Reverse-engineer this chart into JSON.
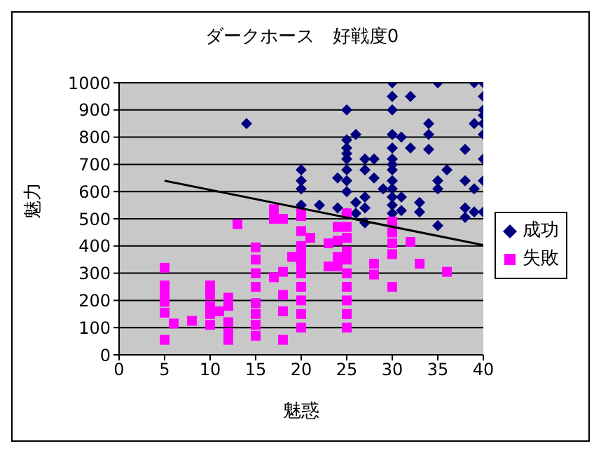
{
  "chart_data": {
    "type": "scatter",
    "title": "ダークホース　好戦度0",
    "xlabel": "魅惑",
    "ylabel": "魅力",
    "xlim": [
      0,
      40
    ],
    "xticks": [
      0,
      5,
      10,
      15,
      20,
      25,
      30,
      35,
      40
    ],
    "ylim": [
      0,
      1000
    ],
    "yticks": [
      0,
      100,
      200,
      300,
      400,
      500,
      600,
      700,
      800,
      900,
      1000
    ],
    "grid": "y",
    "legend": "right",
    "series": [
      {
        "name": "成功",
        "color": "#000080",
        "marker": "diamond",
        "x": [
          14,
          20,
          20,
          20,
          20,
          22,
          24,
          24,
          25,
          25,
          25,
          25,
          25,
          25,
          25,
          25,
          26,
          26,
          27,
          27,
          27,
          27,
          27,
          28,
          28,
          29,
          30,
          30,
          30,
          30,
          30,
          30,
          30,
          30,
          30,
          30,
          30,
          30,
          30,
          31,
          31,
          31,
          32,
          32,
          33,
          33,
          34,
          34,
          34,
          35,
          35,
          35,
          36,
          38,
          38,
          38,
          38,
          39,
          39,
          39,
          39,
          40,
          40,
          40,
          40,
          40,
          40,
          40,
          40,
          40,
          35,
          25,
          26
        ],
        "values": [
          850,
          680,
          640,
          610,
          550,
          550,
          540,
          650,
          900,
          790,
          760,
          740,
          720,
          680,
          640,
          520,
          810,
          520,
          720,
          680,
          580,
          540,
          485,
          720,
          650,
          610,
          1000,
          950,
          900,
          810,
          760,
          720,
          700,
          680,
          640,
          610,
          580,
          550,
          520,
          800,
          580,
          530,
          950,
          760,
          560,
          525,
          850,
          810,
          755,
          1000,
          640,
          610,
          680,
          755,
          640,
          540,
          505,
          1000,
          850,
          610,
          525,
          1000,
          950,
          900,
          850,
          810,
          720,
          640,
          525,
          880,
          475,
          600,
          560
        ]
      },
      {
        "name": "失敗",
        "color": "#ff00ff",
        "marker": "square",
        "x": [
          5,
          5,
          5,
          5,
          5,
          5,
          6,
          8,
          10,
          10,
          10,
          10,
          10,
          11,
          12,
          12,
          12,
          12,
          12,
          13,
          15,
          15,
          15,
          15,
          15,
          15,
          15,
          15,
          17,
          17,
          17,
          18,
          18,
          18,
          18,
          18,
          19,
          20,
          20,
          20,
          20,
          20,
          20,
          20,
          20,
          20,
          20,
          20,
          20,
          21,
          23,
          23,
          24,
          24,
          24,
          24,
          25,
          25,
          25,
          25,
          25,
          25,
          25,
          25,
          25,
          25,
          28,
          28,
          30,
          30,
          30,
          30,
          30,
          32,
          33,
          36
        ],
        "values": [
          320,
          255,
          220,
          195,
          155,
          55,
          115,
          125,
          255,
          220,
          180,
          150,
          110,
          160,
          210,
          180,
          120,
          80,
          55,
          480,
          395,
          350,
          300,
          250,
          190,
          150,
          110,
          70,
          535,
          500,
          285,
          500,
          305,
          220,
          160,
          55,
          360,
          520,
          455,
          400,
          350,
          300,
          250,
          200,
          150,
          100,
          510,
          380,
          330,
          430,
          410,
          325,
          470,
          420,
          360,
          325,
          520,
          470,
          430,
          380,
          350,
          300,
          250,
          200,
          150,
          100,
          335,
          295,
          490,
          450,
          410,
          370,
          250,
          415,
          335,
          305
        ]
      },
      {
        "type": "line",
        "color": "#000000",
        "marker": "none",
        "x": [
          5,
          40
        ],
        "values": [
          640,
          403
        ]
      }
    ]
  }
}
